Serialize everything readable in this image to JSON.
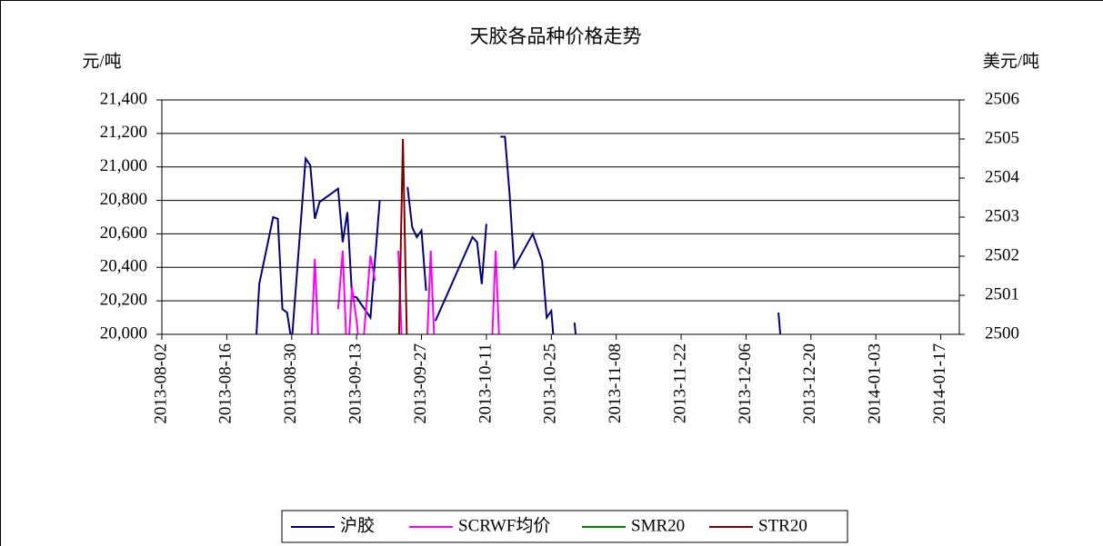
{
  "chart_data": {
    "type": "line",
    "title": "天胶各品种价格走势",
    "ylabel": "元/吨",
    "y2label": "美元/吨",
    "xlim": [
      "2013-08-02",
      "2014-01-21"
    ],
    "xticks": [
      "2013-08-02",
      "2013-08-16",
      "2013-08-30",
      "2013-09-13",
      "2013-09-27",
      "2013-10-11",
      "2013-10-25",
      "2013-11-08",
      "2013-11-22",
      "2013-12-06",
      "2013-12-20",
      "2014-01-03",
      "2014-01-17"
    ],
    "ylim": [
      20000,
      21400
    ],
    "yticks": [
      {
        "value": 20000,
        "label": "20,000"
      },
      {
        "value": 20200,
        "label": "20,200"
      },
      {
        "value": 20400,
        "label": "20,400"
      },
      {
        "value": 20600,
        "label": "20,600"
      },
      {
        "value": 20800,
        "label": "20,800"
      },
      {
        "value": 21000,
        "label": "21,000"
      },
      {
        "value": 21200,
        "label": "21,200"
      },
      {
        "value": 21400,
        "label": "21,400"
      }
    ],
    "y2lim": [
      2500,
      2506
    ],
    "y2ticks": [
      2500,
      2501,
      2502,
      2503,
      2504,
      2505,
      2506
    ],
    "grid": true,
    "legend": "bottom",
    "series": [
      {
        "name": "沪胶",
        "color": "#000080",
        "x": [
          "2013-08-22",
          "2013-08-23",
          "2013-08-26",
          "2013-08-27",
          "2013-08-28",
          "2013-08-29",
          "2013-08-30",
          "2013-09-02",
          "2013-09-03",
          "2013-09-04",
          "2013-09-05",
          "2013-09-09",
          "2013-09-10",
          "2013-09-11",
          "2013-09-12",
          "2013-09-13",
          "2013-09-16",
          "2013-09-18",
          "2013-09-20",
          "2013-09-24",
          "2013-09-25",
          "2013-09-26",
          "2013-09-27",
          "2013-09-28",
          "2013-09-29",
          "2013-09-30",
          "2013-10-08",
          "2013-10-09",
          "2013-10-10",
          "2013-10-11",
          "2013-10-12",
          "2013-10-14",
          "2013-10-15",
          "2013-10-16",
          "2013-10-17",
          "2013-10-21",
          "2013-10-23",
          "2013-10-24",
          "2013-10-25",
          "2013-10-26",
          "2013-10-28",
          "2013-10-30",
          "2013-10-31",
          "2013-12-10",
          "2013-12-13",
          "2013-12-14"
        ],
        "values": [
          19800,
          20300,
          20700,
          20690,
          20150,
          20130,
          19950,
          21050,
          21010,
          20690,
          20790,
          20870,
          20550,
          20730,
          20230,
          20220,
          20100,
          20800,
          null,
          20880,
          20640,
          20580,
          20620,
          20260,
          null,
          20080,
          20580,
          20550,
          20300,
          20660,
          null,
          21180,
          21180,
          20840,
          20400,
          20600,
          20440,
          20100,
          20140,
          19800,
          null,
          20070,
          19800,
          null,
          20130,
          19800
        ]
      },
      {
        "name": "SCRWF均价",
        "color": "#ff00ff",
        "x": [
          "2013-09-03",
          "2013-09-04",
          "2013-09-05",
          "2013-09-08",
          "2013-09-09",
          "2013-09-10",
          "2013-09-11",
          "2013-09-12",
          "2013-09-13",
          "2013-09-14",
          "2013-09-16",
          "2013-09-17",
          "2013-09-18",
          "2013-09-22",
          "2013-09-23",
          "2013-09-25",
          "2013-09-28",
          "2013-09-29",
          "2013-09-30",
          "2013-10-08",
          "2013-10-12",
          "2013-10-13",
          "2013-10-14"
        ],
        "values": [
          19800,
          20450,
          19800,
          null,
          20150,
          20500,
          19800,
          20280,
          20080,
          19800,
          20470,
          20320,
          null,
          20500,
          19800,
          null,
          19800,
          20500,
          19800,
          null,
          19800,
          20500,
          19800
        ]
      },
      {
        "name": "SMR20",
        "color": "#008000",
        "axis": "y2",
        "x": [],
        "values": []
      },
      {
        "name": "STR20",
        "color": "#800000",
        "axis": "y2",
        "x": [
          "2013-09-22",
          "2013-09-23",
          "2013-09-24"
        ],
        "values": [
          2499,
          2505,
          2499
        ]
      }
    ]
  }
}
